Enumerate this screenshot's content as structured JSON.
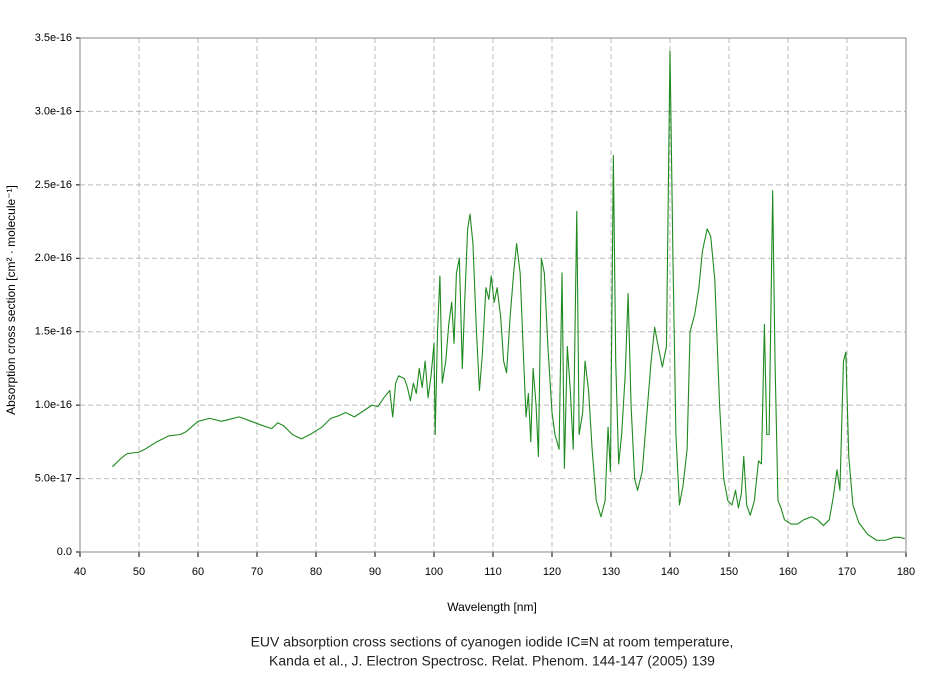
{
  "chart_data": {
    "type": "line",
    "title": "EUV absorption cross sections of cyanogen iodide IC≡N at room temperature,",
    "subtitle": "Kanda et al., J. Electron Spectrosc. Relat. Phenom. 144-147 (2005) 139",
    "xlabel": "Wavelength [nm]",
    "ylabel": "Absorption cross section [cm² · molecule⁻¹]",
    "color": "#1f8a1f",
    "grid": true,
    "xlim": [
      40,
      180
    ],
    "xticks": [
      40,
      50,
      60,
      70,
      80,
      90,
      100,
      110,
      120,
      130,
      140,
      150,
      160,
      170,
      180
    ],
    "ylim": [
      0,
      3.5e-16
    ],
    "yticks": [
      {
        "value": 0,
        "label": "0.0"
      },
      {
        "value": 5e-17,
        "label": "5.0e-17"
      },
      {
        "value": 1e-16,
        "label": "1.0e-16"
      },
      1.5e-16,
      {
        "value": 2e-16,
        "label": "2.0e-16"
      },
      2.5e-16,
      {
        "value": 3e-16,
        "label": "3.0e-16"
      },
      3.5e-16
    ],
    "x": [
      45.5,
      47,
      48,
      50,
      51,
      53,
      55,
      57,
      58,
      60,
      62,
      64,
      65,
      67,
      69,
      71,
      72.5,
      73.5,
      74.5,
      76,
      77.5,
      79,
      81,
      82.5,
      84,
      85,
      86.5,
      88,
      89.5,
      90.5,
      91.5,
      92.5,
      93,
      93.5,
      94,
      95,
      95.5,
      96,
      96.5,
      97,
      97.5,
      98,
      98.5,
      99,
      99.5,
      100,
      100.2,
      100.6,
      101,
      101.4,
      102,
      102.5,
      103,
      103.4,
      103.8,
      104.3,
      104.8,
      105.2,
      105.7,
      106.1,
      106.6,
      107.2,
      107.7,
      108.2,
      108.8,
      109.3,
      109.7,
      110.2,
      110.7,
      111.3,
      111.8,
      112.3,
      112.9,
      113.5,
      114,
      114.6,
      115.2,
      115.6,
      116,
      116.4,
      116.8,
      117.3,
      117.7,
      118.2,
      118.7,
      119.3,
      120,
      120.5,
      121.2,
      121.7,
      122.1,
      122.6,
      123.1,
      123.6,
      124.2,
      124.6,
      125.2,
      125.6,
      126.2,
      126.8,
      127.5,
      128.3,
      129,
      129.5,
      129.9,
      130.4,
      130.8,
      131.3,
      131.8,
      132.4,
      132.9,
      133.4,
      134,
      134.5,
      135.3,
      136.1,
      136.8,
      137.4,
      138,
      138.7,
      139.4,
      140,
      140.5,
      141,
      141.6,
      142.2,
      142.9,
      143.4,
      144.2,
      144.9,
      145.5,
      146.3,
      146.9,
      147.6,
      148.4,
      149.1,
      149.8,
      150.5,
      151.1,
      151.6,
      152.1,
      152.5,
      153,
      153.6,
      154.3,
      155,
      155.5,
      156,
      156.4,
      156.8,
      157.4,
      157.8,
      158.3,
      158.8,
      159.4,
      160.5,
      161.6,
      162.7,
      164,
      165,
      166,
      167,
      167.7,
      168.3,
      168.8,
      169.4,
      169.8,
      170.3,
      171,
      172,
      173.5,
      175,
      176.5,
      178,
      179,
      179.8
    ],
    "values": [
      5.8e-17,
      6.4e-17,
      6.7e-17,
      6.8e-17,
      7e-17,
      7.5e-17,
      7.9e-17,
      8e-17,
      8.2e-17,
      8.9e-17,
      9.1e-17,
      8.9e-17,
      9e-17,
      9.2e-17,
      8.9e-17,
      8.6e-17,
      8.4e-17,
      8.8e-17,
      8.6e-17,
      8e-17,
      7.7e-17,
      8e-17,
      8.5e-17,
      9.1e-17,
      9.3e-17,
      9.5e-17,
      9.2e-17,
      9.6e-17,
      1e-16,
      9.9e-17,
      1.05e-16,
      1.1e-16,
      9.2e-17,
      1.15e-16,
      1.2e-16,
      1.18e-16,
      1.12e-16,
      1.03e-16,
      1.15e-16,
      1.08e-16,
      1.25e-16,
      1.12e-16,
      1.3e-16,
      1.05e-16,
      1.2e-16,
      1.42e-16,
      8e-17,
      1.5e-16,
      1.88e-16,
      1.15e-16,
      1.3e-16,
      1.55e-16,
      1.7e-16,
      1.42e-16,
      1.9e-16,
      2e-16,
      1.25e-16,
      1.7e-16,
      2.2e-16,
      2.3e-16,
      2.1e-16,
      1.5e-16,
      1.1e-16,
      1.35e-16,
      1.8e-16,
      1.72e-16,
      1.88e-16,
      1.7e-16,
      1.8e-16,
      1.6e-16,
      1.3e-16,
      1.22e-16,
      1.6e-16,
      1.9e-16,
      2.1e-16,
      1.9e-16,
      1.3e-16,
      9.2e-17,
      1.08e-16,
      7.5e-17,
      1.25e-16,
      1e-16,
      6.5e-17,
      2e-16,
      1.9e-16,
      1.4e-16,
      9.5e-17,
      8e-17,
      7e-17,
      1.9e-16,
      5.7e-17,
      1.4e-16,
      1.1e-16,
      7e-17,
      2.32e-16,
      8e-17,
      9.5e-17,
      1.3e-16,
      1.1e-16,
      7e-17,
      3.5e-17,
      2.4e-17,
      3.5e-17,
      8.5e-17,
      5.5e-17,
      2.7e-16,
      1.3e-16,
      6e-17,
      8e-17,
      1.2e-16,
      1.76e-16,
      1e-16,
      5e-17,
      4.2e-17,
      5.5e-17,
      9.5e-17,
      1.3e-16,
      1.53e-16,
      1.4e-16,
      1.26e-16,
      1.4e-16,
      3.41e-16,
      2e-16,
      8e-17,
      3.2e-17,
      4.5e-17,
      7e-17,
      1.5e-16,
      1.62e-16,
      1.8e-16,
      2.05e-16,
      2.2e-16,
      2.15e-16,
      1.85e-16,
      1e-16,
      5e-17,
      3.5e-17,
      3.2e-17,
      4.2e-17,
      3e-17,
      4e-17,
      6.5e-17,
      3.2e-17,
      2.5e-17,
      3.5e-17,
      6.2e-17,
      6e-17,
      1.55e-16,
      8e-17,
      8e-17,
      2.46e-16,
      1.3e-16,
      3.5e-17,
      3e-17,
      2.2e-17,
      1.9e-17,
      1.9e-17,
      2.2e-17,
      2.4e-17,
      2.2e-17,
      1.8e-17,
      2.2e-17,
      3.8e-17,
      5.6e-17,
      4.2e-17,
      1.3e-16,
      1.36e-16,
      6.5e-17,
      3.2e-17,
      2e-17,
      1.2e-17,
      8e-18,
      8e-18,
      1e-17,
      1e-17,
      9e-18
    ]
  }
}
